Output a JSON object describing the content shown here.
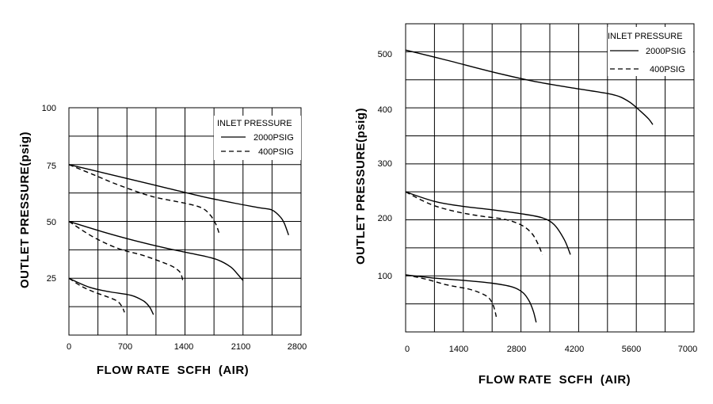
{
  "chart_data": [
    {
      "type": "line",
      "xlabel": "FLOW RATE  SCFH  (AIR)",
      "ylabel": "OUTLET PRESSURE(psig)",
      "xlim": [
        0,
        2800
      ],
      "ylim": [
        0,
        100
      ],
      "x_ticks": [
        0,
        700,
        1400,
        2100,
        2800
      ],
      "x_tick_labels": [
        "0",
        "700",
        "1400",
        "2100",
        "2800"
      ],
      "y_ticks": [
        25,
        50,
        75,
        100
      ],
      "y_tick_labels": [
        "25",
        "50",
        "75",
        "100"
      ],
      "grid": true,
      "legend": {
        "title": "INLET PRESSURE",
        "entries": [
          {
            "label": "2000PSIG",
            "style": "solid"
          },
          {
            "label": "400PSIG",
            "style": "dashed"
          }
        ],
        "placement": "top-right"
      },
      "series": [
        {
          "inlet": "2000PSIG",
          "style": "solid",
          "x": [
            0,
            400,
            800,
            1200,
            1600,
            2000,
            2300,
            2450,
            2550,
            2600,
            2650
          ],
          "y": [
            75,
            71.5,
            68,
            64.5,
            61,
            58,
            56,
            55,
            52,
            49,
            44
          ]
        },
        {
          "inlet": "400PSIG",
          "style": "dashed",
          "x": [
            0,
            300,
            600,
            1000,
            1400,
            1600,
            1700,
            1770,
            1810
          ],
          "y": [
            75,
            70.5,
            66,
            61,
            58,
            56,
            53,
            49,
            45
          ]
        },
        {
          "inlet": "2000PSIG",
          "style": "solid",
          "x": [
            0,
            400,
            800,
            1200,
            1600,
            1800,
            1950,
            2030,
            2100
          ],
          "y": [
            50,
            45.5,
            41.5,
            38,
            35,
            33,
            30,
            27,
            24
          ]
        },
        {
          "inlet": "400PSIG",
          "style": "dashed",
          "x": [
            0,
            300,
            600,
            900,
            1200,
            1300,
            1350,
            1380
          ],
          "y": [
            50,
            43,
            38,
            35,
            31,
            29,
            27,
            23
          ]
        },
        {
          "inlet": "2000PSIG",
          "style": "solid",
          "x": [
            0,
            250,
            500,
            750,
            900,
            970,
            1020
          ],
          "y": [
            25,
            21,
            19,
            17.5,
            15,
            12.5,
            9
          ]
        },
        {
          "inlet": "400PSIG",
          "style": "dashed",
          "x": [
            0,
            150,
            300,
            450,
            580,
            640,
            670
          ],
          "y": [
            25,
            21.5,
            19,
            17,
            15,
            12.5,
            10
          ]
        }
      ]
    },
    {
      "type": "line",
      "xlabel": "FLOW RATE  SCFH  (AIR)",
      "ylabel": "OUTLET PRESSURE(psig)",
      "xlim": [
        0,
        7000
      ],
      "ylim": [
        0,
        550
      ],
      "x_ticks": [
        0,
        1400,
        2800,
        4200,
        5600,
        7000
      ],
      "x_tick_labels": [
        "0",
        "1400",
        "2800",
        "4200",
        "5600",
        "7000"
      ],
      "y_ticks": [
        100,
        200,
        300,
        400,
        500
      ],
      "y_tick_labels": [
        "100",
        "200",
        "300",
        "400",
        "500"
      ],
      "grid": true,
      "legend": {
        "title": "INLET PRESSURE",
        "entries": [
          {
            "label": "2000PSIG",
            "style": "solid"
          },
          {
            "label": "400PSIG",
            "style": "dashed"
          }
        ],
        "placement": "top-right"
      },
      "series": [
        {
          "inlet": "2000PSIG",
          "style": "solid",
          "x": [
            0,
            1000,
            2000,
            3000,
            4000,
            5000,
            5400,
            5700,
            5900,
            6000
          ],
          "y": [
            503,
            485,
            466,
            449,
            436,
            424,
            412,
            394,
            380,
            370
          ]
        },
        {
          "inlet": "2000PSIG",
          "style": "solid",
          "x": [
            0,
            700,
            1400,
            2100,
            2800,
            3300,
            3600,
            3850,
            4000
          ],
          "y": [
            250,
            233,
            224,
            218,
            211,
            204,
            192,
            165,
            138
          ]
        },
        {
          "inlet": "400PSIG",
          "style": "dashed",
          "x": [
            0,
            600,
            1200,
            1800,
            2400,
            2800,
            3050,
            3200,
            3320
          ],
          "y": [
            250,
            228,
            215,
            207,
            201,
            191,
            177,
            159,
            138
          ]
        },
        {
          "inlet": "2000PSIG",
          "style": "solid",
          "x": [
            0,
            700,
            1400,
            2100,
            2600,
            2850,
            3000,
            3100,
            3170
          ],
          "y": [
            102,
            96,
            92,
            87,
            80,
            70,
            55,
            37,
            17
          ]
        },
        {
          "inlet": "400PSIG",
          "style": "dashed",
          "x": [
            0,
            500,
            1000,
            1500,
            1800,
            2000,
            2100,
            2160,
            2200
          ],
          "y": [
            102,
            94,
            84,
            77,
            70,
            62,
            52,
            40,
            27
          ]
        }
      ]
    }
  ]
}
